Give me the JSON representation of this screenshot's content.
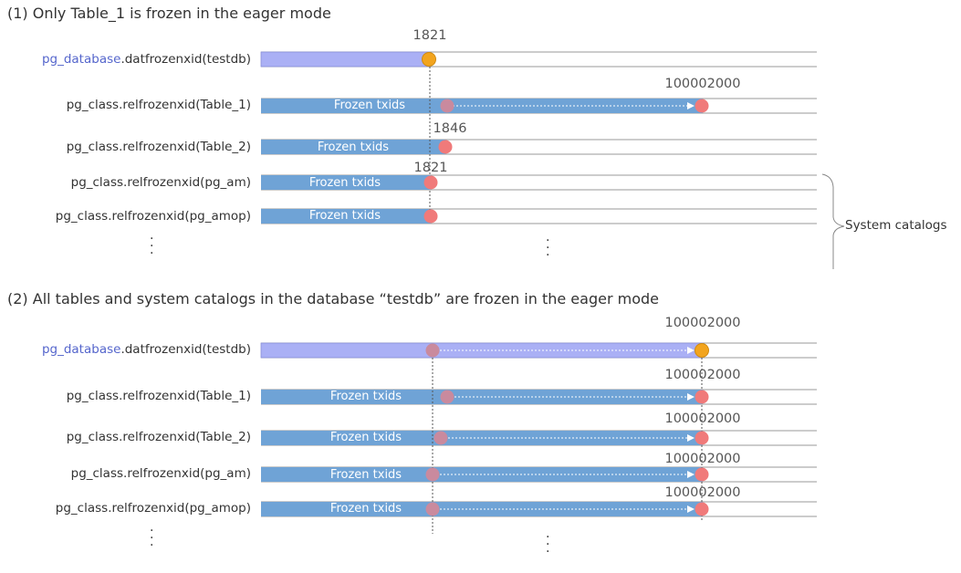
{
  "section1": {
    "title": "(1) Only Table_1 is frozen in the eager mode",
    "rows": [
      {
        "label_prefix": "pg_database",
        "label_rest": ".datfrozenxid(testdb)",
        "bar_text": ""
      },
      {
        "label_prefix": "",
        "label_rest": "pg_class.relfrozenxid(Table_1)",
        "bar_text": "Frozen txids"
      },
      {
        "label_prefix": "",
        "label_rest": "pg_class.relfrozenxid(Table_2)",
        "bar_text": "Frozen txids"
      },
      {
        "label_prefix": "",
        "label_rest": "pg_class.relfrozenxid(pg_am)",
        "bar_text": "Frozen txids"
      },
      {
        "label_prefix": "",
        "label_rest": "pg_class.relfrozenxid(pg_amop)",
        "bar_text": "Frozen txids"
      }
    ],
    "numbers": [
      "1821",
      "100002000",
      "1846",
      "1821"
    ],
    "brace_label": "System catalogs"
  },
  "section2": {
    "title": "(2) All tables and system catalogs in the database “testdb” are frozen in the eager mode",
    "rows": [
      {
        "label_prefix": "pg_database",
        "label_rest": ".datfrozenxid(testdb)",
        "bar_text": ""
      },
      {
        "label_prefix": "",
        "label_rest": "pg_class.relfrozenxid(Table_1)",
        "bar_text": "Frozen txids"
      },
      {
        "label_prefix": "",
        "label_rest": "pg_class.relfrozenxid(Table_2)",
        "bar_text": "Frozen txids"
      },
      {
        "label_prefix": "",
        "label_rest": "pg_class.relfrozenxid(pg_am)",
        "bar_text": "Frozen txids"
      },
      {
        "label_prefix": "",
        "label_rest": "pg_class.relfrozenxid(pg_amop)",
        "bar_text": "Frozen txids"
      }
    ],
    "numbers": [
      "100002000",
      "100002000",
      "100002000",
      "100002000",
      "100002000"
    ]
  },
  "colors": {
    "database_bar": "#aab0f5",
    "table_bar": "#6fa3d6",
    "orange_marker": "#f2a41e",
    "red_marker": "#f07a7a",
    "faded_marker": "#c98a9e",
    "link_blue": "#5566cc"
  }
}
